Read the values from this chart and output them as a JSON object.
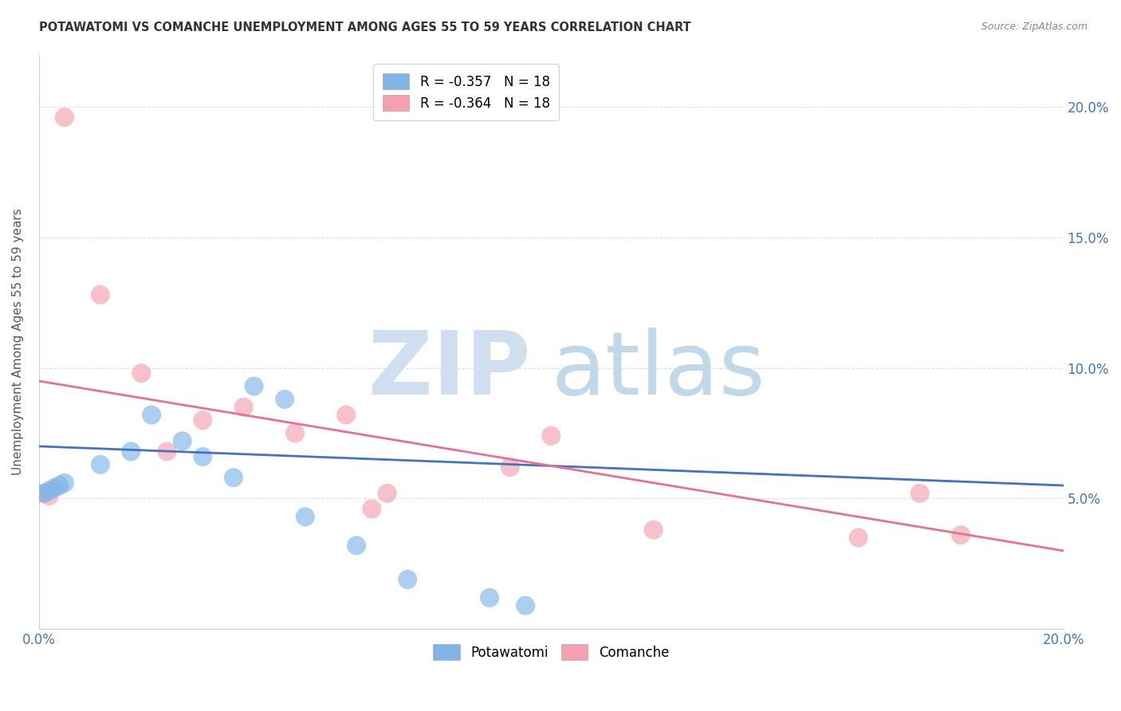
{
  "title": "POTAWATOMI VS COMANCHE UNEMPLOYMENT AMONG AGES 55 TO 59 YEARS CORRELATION CHART",
  "source": "Source: ZipAtlas.com",
  "ylabel": "Unemployment Among Ages 55 to 59 years",
  "xlim": [
    0.0,
    0.2
  ],
  "ylim": [
    0.0,
    0.22
  ],
  "x_ticks": [
    0.0,
    0.04,
    0.08,
    0.12,
    0.16,
    0.2
  ],
  "x_tick_labels": [
    "0.0%",
    "",
    "",
    "",
    "",
    "20.0%"
  ],
  "y_ticks": [
    0.0,
    0.05,
    0.1,
    0.15,
    0.2
  ],
  "y_tick_labels_right": [
    "",
    "5.0%",
    "10.0%",
    "15.0%",
    "20.0%"
  ],
  "legend_entries": [
    {
      "label": "R = -0.357   N = 18",
      "color": "#a8c4e0"
    },
    {
      "label": "R = -0.364   N = 18",
      "color": "#f4a8b8"
    }
  ],
  "potawatomi_x": [
    0.001,
    0.002,
    0.003,
    0.004,
    0.005,
    0.012,
    0.018,
    0.022,
    0.028,
    0.032,
    0.038,
    0.042,
    0.048,
    0.052,
    0.062,
    0.072,
    0.088,
    0.095
  ],
  "potawatomi_y": [
    0.052,
    0.053,
    0.054,
    0.055,
    0.056,
    0.063,
    0.068,
    0.082,
    0.072,
    0.066,
    0.058,
    0.093,
    0.088,
    0.043,
    0.032,
    0.019,
    0.012,
    0.009
  ],
  "comanche_x": [
    0.001,
    0.002,
    0.005,
    0.012,
    0.02,
    0.025,
    0.032,
    0.04,
    0.05,
    0.06,
    0.065,
    0.068,
    0.092,
    0.1,
    0.12,
    0.16,
    0.172,
    0.18
  ],
  "comanche_y": [
    0.052,
    0.051,
    0.196,
    0.128,
    0.098,
    0.068,
    0.08,
    0.085,
    0.075,
    0.082,
    0.046,
    0.052,
    0.062,
    0.074,
    0.038,
    0.035,
    0.052,
    0.036
  ],
  "potawatomi_color": "#7EB6E8",
  "comanche_color": "#F4A0B0",
  "potawatomi_line_color": "#4472C4",
  "comanche_line_color": "#E87092",
  "watermark_zip_color": "#D0DFF0",
  "watermark_atlas_color": "#C0D8E8",
  "background_color": "#ffffff",
  "grid_color": "#e0e0e0",
  "pot_line_start_y": 0.07,
  "pot_line_end_y": 0.055,
  "com_line_start_y": 0.095,
  "com_line_end_y": 0.03
}
